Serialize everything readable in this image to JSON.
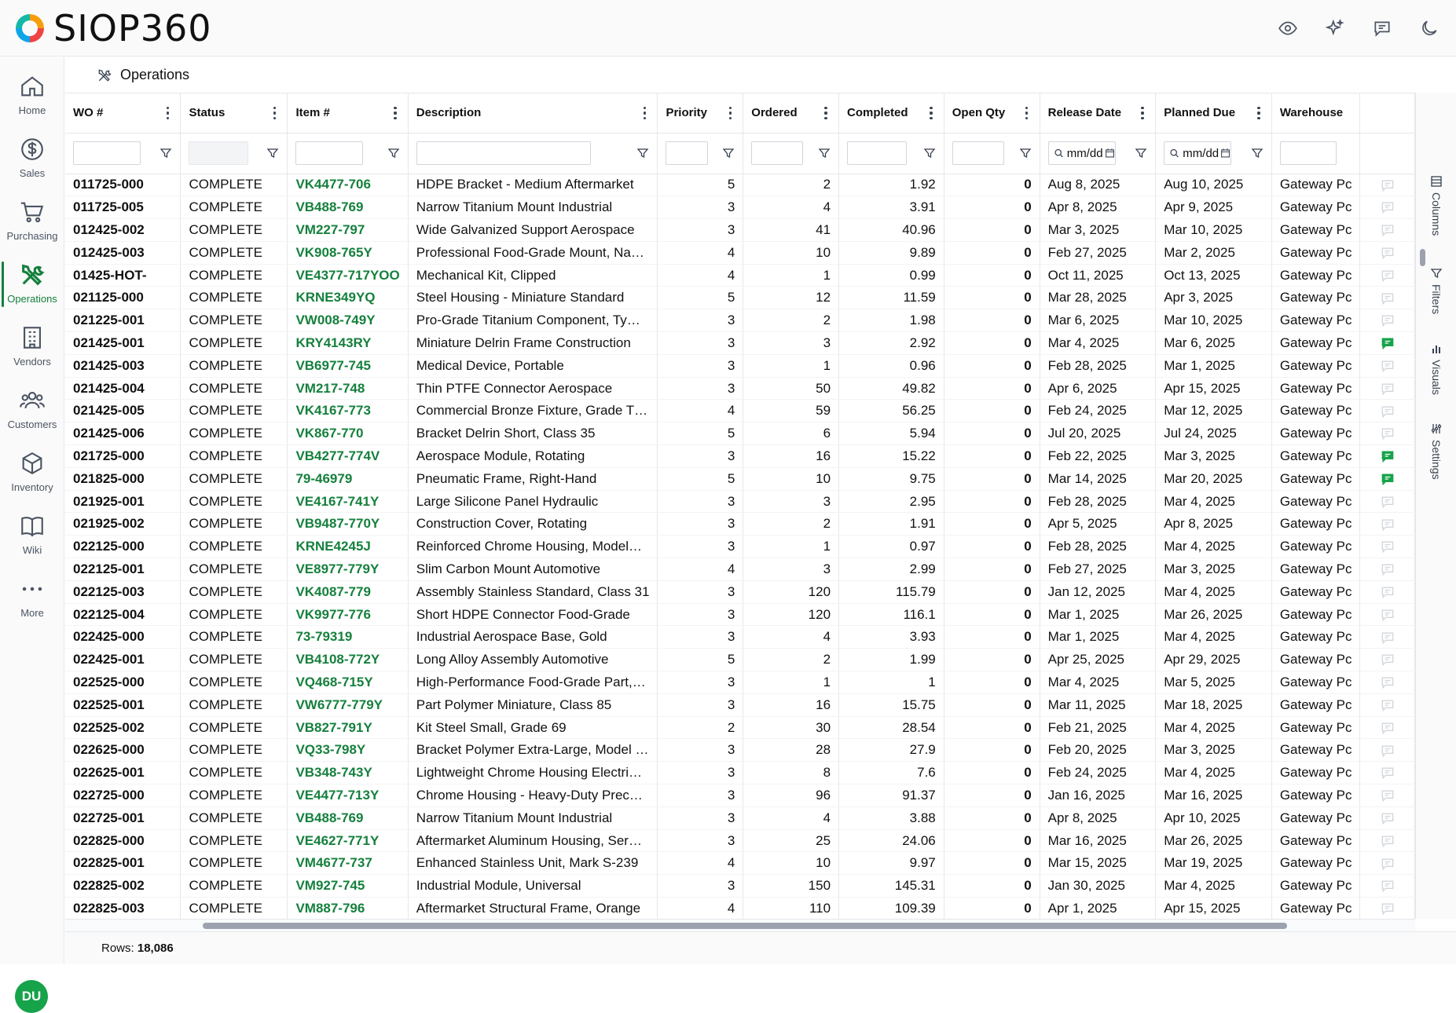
{
  "app": {
    "name": "SIOP360"
  },
  "topbar": {
    "icons": [
      "eye-icon",
      "sparkles-icon",
      "chat-icon",
      "moon-icon"
    ]
  },
  "sidebar": {
    "items": [
      {
        "label": "Home",
        "icon": "home-icon"
      },
      {
        "label": "Sales",
        "icon": "dollar-icon"
      },
      {
        "label": "Purchasing",
        "icon": "cart-icon"
      },
      {
        "label": "Operations",
        "icon": "tools-icon",
        "active": true
      },
      {
        "label": "Vendors",
        "icon": "building-icon"
      },
      {
        "label": "Customers",
        "icon": "users-icon"
      },
      {
        "label": "Inventory",
        "icon": "box-icon"
      },
      {
        "label": "Wiki",
        "icon": "book-icon"
      },
      {
        "label": "More",
        "icon": "more-icon"
      }
    ],
    "user_initials": "DU"
  },
  "page": {
    "title": "Operations"
  },
  "grid": {
    "columns": [
      "WO #",
      "Status",
      "Item #",
      "Description",
      "Priority",
      "Ordered",
      "Completed",
      "Open Qty",
      "Release Date",
      "Planned Due",
      "Warehouse"
    ],
    "date_placeholder": "mm/dd",
    "rows": [
      [
        "011725-000",
        "COMPLETE",
        "VK4477-706",
        "HDPE Bracket - Medium Aftermarket",
        "5",
        "2",
        "1.92",
        "0",
        "Aug 8, 2025",
        "Aug 10, 2025",
        "Gateway Pc",
        false
      ],
      [
        "011725-005",
        "COMPLETE",
        "VB488-769",
        "Narrow Titanium Mount Industrial",
        "3",
        "4",
        "3.91",
        "0",
        "Apr 8, 2025",
        "Apr 9, 2025",
        "Gateway Pc",
        false
      ],
      [
        "012425-002",
        "COMPLETE",
        "VM227-797",
        "Wide Galvanized Support Aerospace",
        "3",
        "41",
        "40.96",
        "0",
        "Mar 3, 2025",
        "Mar 10, 2025",
        "Gateway Pc",
        false
      ],
      [
        "012425-003",
        "COMPLETE",
        "VK908-765Y",
        "Professional Food-Grade Mount, Na…",
        "4",
        "10",
        "9.89",
        "0",
        "Feb 27, 2025",
        "Mar 2, 2025",
        "Gateway Pc",
        false
      ],
      [
        "01425-HOT-",
        "COMPLETE",
        "VE4377-717YOO",
        "Mechanical Kit, Clipped",
        "4",
        "1",
        "0.99",
        "0",
        "Oct 11, 2025",
        "Oct 13, 2025",
        "Gateway Pc",
        false
      ],
      [
        "021125-000",
        "COMPLETE",
        "KRNE349YQ",
        "Steel Housing - Miniature Standard",
        "5",
        "12",
        "11.59",
        "0",
        "Mar 28, 2025",
        "Apr 3, 2025",
        "Gateway Pc",
        false
      ],
      [
        "021225-001",
        "COMPLETE",
        "VW008-749Y",
        "Pro-Grade Titanium Component, Ty…",
        "3",
        "2",
        "1.98",
        "0",
        "Mar 6, 2025",
        "Mar 10, 2025",
        "Gateway Pc",
        false
      ],
      [
        "021425-001",
        "COMPLETE",
        "KRY4143RY",
        "Miniature Delrin Frame Construction",
        "3",
        "3",
        "2.92",
        "0",
        "Mar 4, 2025",
        "Mar 6, 2025",
        "Gateway Pc",
        true
      ],
      [
        "021425-003",
        "COMPLETE",
        "VB6977-745",
        "Medical Device, Portable",
        "3",
        "1",
        "0.96",
        "0",
        "Feb 28, 2025",
        "Mar 1, 2025",
        "Gateway Pc",
        false
      ],
      [
        "021425-004",
        "COMPLETE",
        "VM217-748",
        "Thin PTFE Connector Aerospace",
        "3",
        "50",
        "49.82",
        "0",
        "Apr 6, 2025",
        "Apr 15, 2025",
        "Gateway Pc",
        false
      ],
      [
        "021425-005",
        "COMPLETE",
        "VK4167-773",
        "Commercial Bronze Fixture, Grade T…",
        "4",
        "59",
        "56.25",
        "0",
        "Feb 24, 2025",
        "Mar 12, 2025",
        "Gateway Pc",
        false
      ],
      [
        "021425-006",
        "COMPLETE",
        "VK867-770",
        "Bracket Delrin Short, Class 35",
        "5",
        "6",
        "5.94",
        "0",
        "Jul 20, 2025",
        "Jul 24, 2025",
        "Gateway Pc",
        false
      ],
      [
        "021725-000",
        "COMPLETE",
        "VB4277-774V",
        "Aerospace Module, Rotating",
        "3",
        "16",
        "15.22",
        "0",
        "Feb 22, 2025",
        "Mar 3, 2025",
        "Gateway Pc",
        true
      ],
      [
        "021825-000",
        "COMPLETE",
        "79-46979",
        "Pneumatic Frame, Right-Hand",
        "5",
        "10",
        "9.75",
        "0",
        "Mar 14, 2025",
        "Mar 20, 2025",
        "Gateway Pc",
        true
      ],
      [
        "021925-001",
        "COMPLETE",
        "VE4167-741Y",
        "Large Silicone Panel Hydraulic",
        "3",
        "3",
        "2.95",
        "0",
        "Feb 28, 2025",
        "Mar 4, 2025",
        "Gateway Pc",
        false
      ],
      [
        "021925-002",
        "COMPLETE",
        "VB9487-770Y",
        "Construction Cover, Rotating",
        "3",
        "2",
        "1.91",
        "0",
        "Apr 5, 2025",
        "Apr 8, 2025",
        "Gateway Pc",
        false
      ],
      [
        "022125-000",
        "COMPLETE",
        "KRNE4245J",
        "Reinforced Chrome Housing, Model…",
        "3",
        "1",
        "0.97",
        "0",
        "Feb 28, 2025",
        "Mar 4, 2025",
        "Gateway Pc",
        false
      ],
      [
        "022125-001",
        "COMPLETE",
        "VE8977-779Y",
        "Slim Carbon Mount Automotive",
        "4",
        "3",
        "2.99",
        "0",
        "Feb 27, 2025",
        "Mar 3, 2025",
        "Gateway Pc",
        false
      ],
      [
        "022125-003",
        "COMPLETE",
        "VK4087-779",
        "Assembly Stainless Standard, Class 31",
        "3",
        "120",
        "115.79",
        "0",
        "Jan 12, 2025",
        "Mar 4, 2025",
        "Gateway Pc",
        false
      ],
      [
        "022125-004",
        "COMPLETE",
        "VK9977-776",
        "Short HDPE Connector Food-Grade",
        "3",
        "120",
        "116.1",
        "0",
        "Mar 1, 2025",
        "Mar 26, 2025",
        "Gateway Pc",
        false
      ],
      [
        "022425-000",
        "COMPLETE",
        "73-79319",
        "Industrial Aerospace Base, Gold",
        "3",
        "4",
        "3.93",
        "0",
        "Mar 1, 2025",
        "Mar 4, 2025",
        "Gateway Pc",
        false
      ],
      [
        "022425-001",
        "COMPLETE",
        "VB4108-772Y",
        "Long Alloy Assembly Automotive",
        "5",
        "2",
        "1.99",
        "0",
        "Apr 25, 2025",
        "Apr 29, 2025",
        "Gateway Pc",
        false
      ],
      [
        "022525-000",
        "COMPLETE",
        "VQ468-715Y",
        "High-Performance Food-Grade Part,…",
        "3",
        "1",
        "1",
        "0",
        "Mar 4, 2025",
        "Mar 5, 2025",
        "Gateway Pc",
        false
      ],
      [
        "022525-001",
        "COMPLETE",
        "VW6777-779Y",
        "Part Polymer Miniature, Class 85",
        "3",
        "16",
        "15.75",
        "0",
        "Mar 11, 2025",
        "Mar 18, 2025",
        "Gateway Pc",
        false
      ],
      [
        "022525-002",
        "COMPLETE",
        "VB827-791Y",
        "Kit Steel Small, Grade 69",
        "2",
        "30",
        "28.54",
        "0",
        "Feb 21, 2025",
        "Mar 4, 2025",
        "Gateway Pc",
        false
      ],
      [
        "022625-000",
        "COMPLETE",
        "VQ33-798Y",
        "Bracket Polymer Extra-Large, Model …",
        "3",
        "28",
        "27.9",
        "0",
        "Feb 20, 2025",
        "Mar 3, 2025",
        "Gateway Pc",
        false
      ],
      [
        "022625-001",
        "COMPLETE",
        "VB348-743Y",
        "Lightweight Chrome Housing Electri…",
        "3",
        "8",
        "7.6",
        "0",
        "Feb 24, 2025",
        "Mar 4, 2025",
        "Gateway Pc",
        false
      ],
      [
        "022725-000",
        "COMPLETE",
        "VE4477-713Y",
        "Chrome Housing - Heavy-Duty Prec…",
        "3",
        "96",
        "91.37",
        "0",
        "Jan 16, 2025",
        "Mar 16, 2025",
        "Gateway Pc",
        false
      ],
      [
        "022725-001",
        "COMPLETE",
        "VB488-769",
        "Narrow Titanium Mount Industrial",
        "3",
        "4",
        "3.88",
        "0",
        "Apr 8, 2025",
        "Apr 10, 2025",
        "Gateway Pc",
        false
      ],
      [
        "022825-000",
        "COMPLETE",
        "VE4627-771Y",
        "Aftermarket Aluminum Housing, Ser…",
        "3",
        "25",
        "24.06",
        "0",
        "Mar 16, 2025",
        "Mar 26, 2025",
        "Gateway Pc",
        false
      ],
      [
        "022825-001",
        "COMPLETE",
        "VM4677-737",
        "Enhanced Stainless Unit, Mark S-239",
        "4",
        "10",
        "9.97",
        "0",
        "Mar 15, 2025",
        "Mar 19, 2025",
        "Gateway Pc",
        false
      ],
      [
        "022825-002",
        "COMPLETE",
        "VM927-745",
        "Industrial Module, Universal",
        "3",
        "150",
        "145.31",
        "0",
        "Jan 30, 2025",
        "Mar 4, 2025",
        "Gateway Pc",
        false
      ],
      [
        "022825-003",
        "COMPLETE",
        "VM887-796",
        "Aftermarket Structural Frame, Orange",
        "4",
        "110",
        "109.39",
        "0",
        "Apr 1, 2025",
        "Apr 15, 2025",
        "Gateway Pc",
        false
      ]
    ]
  },
  "side_panel": {
    "tabs": [
      "Columns",
      "Filters",
      "Visuals",
      "Settings"
    ]
  },
  "footer": {
    "rows_label": "Rows:",
    "rows_count": "18,086"
  },
  "colors": {
    "accent": "#15803d",
    "comment_active": "#16a34a",
    "comment_inactive": "#d1d5db"
  }
}
